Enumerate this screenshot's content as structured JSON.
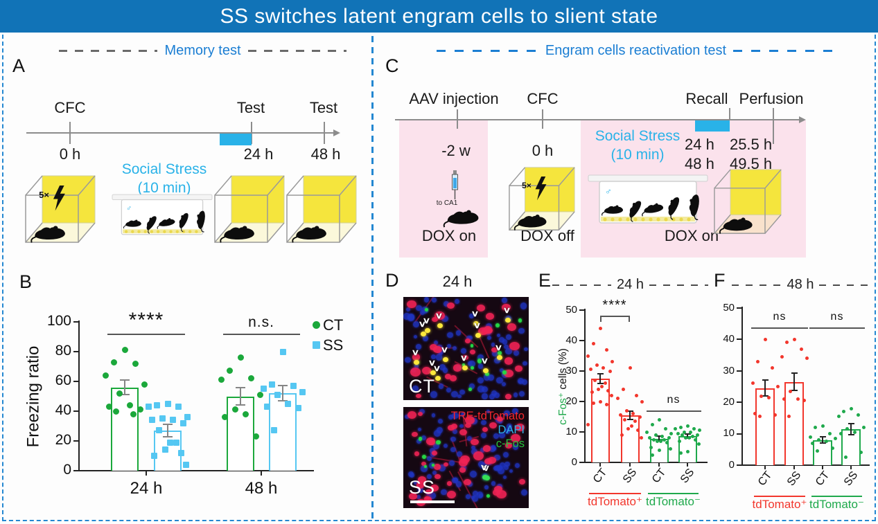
{
  "title": "SS switches latent engram cells to slient state",
  "headers": {
    "left": "Memory test",
    "right": "Engram cells reactivation test"
  },
  "panel_a": {
    "label": "A",
    "event_cfc": "CFC",
    "event_test1": "Test",
    "event_test2": "Test",
    "time_0": "0 h",
    "time_24": "24 h",
    "time_48": "48 h",
    "stress_line1": "Social Stress",
    "stress_line2": "(10 min)",
    "shock_label": "5×",
    "male_symbol": "♂"
  },
  "panel_b": {
    "label": "B"
  },
  "panel_c": {
    "label": "C",
    "event_aav": "AAV injection",
    "event_cfc": "CFC",
    "event_recall": "Recall",
    "event_perfusion": "Perfusion",
    "time_aav": "-2 w",
    "time_cfc": "0 h",
    "recall_time_24": "24 h",
    "perfusion_time_24": "25.5 h",
    "recall_time_48": "48 h",
    "perfusion_time_48": "49.5 h",
    "stress_line1": "Social Stress",
    "stress_line2": "(10 min)",
    "dox_1": "DOX on",
    "dox_2": "DOX off",
    "dox_3": "DOX on",
    "injection_target": "to CA1",
    "shock_label": "5×",
    "male_symbol": "♂"
  },
  "panel_d": {
    "label": "D",
    "time_header": "24 h",
    "image_top_label": "CT",
    "image_bottom_label": "SS",
    "stain_tdtomato": "TRE-tdTomato",
    "stain_dapi": "DAPI",
    "stain_cfos": "c-Fos",
    "arrowheads_ct": 13,
    "arrowheads_ss": 2
  },
  "panel_e": {
    "label": "E",
    "time_header": "24 h"
  },
  "panel_f": {
    "label": "F",
    "time_header": "48 h"
  },
  "chart_data": [
    {
      "panel": "B",
      "type": "bar",
      "subtype": "bar_with_scatter",
      "ylabel": "Freezing ratio",
      "ylim": [
        0,
        100
      ],
      "yticks": [
        0,
        20,
        40,
        60,
        80,
        100
      ],
      "group_labels": [
        "24 h",
        "48 h"
      ],
      "series": [
        {
          "name": "CT",
          "color": "#1ba83b",
          "marker": "circle"
        },
        {
          "name": "SS",
          "color": "#55c7f2",
          "marker": "square"
        }
      ],
      "bars": [
        {
          "group": "24 h",
          "series": "CT",
          "mean": 56,
          "sem": 5,
          "points": [
            81,
            73,
            72,
            64,
            58,
            52,
            44,
            43,
            41,
            40,
            38
          ]
        },
        {
          "group": "24 h",
          "series": "SS",
          "mean": 27,
          "sem": 4,
          "points": [
            45,
            44,
            43,
            43,
            36,
            35,
            34,
            34,
            32,
            27,
            19,
            19,
            14,
            12,
            10,
            4
          ]
        },
        {
          "group": "48 h",
          "series": "CT",
          "mean": 50,
          "sem": 6,
          "points": [
            76,
            67,
            62,
            61,
            51,
            41,
            38,
            36,
            23
          ]
        },
        {
          "group": "48 h",
          "series": "SS",
          "mean": 52,
          "sem": 5,
          "points": [
            80,
            58,
            57,
            55,
            53,
            51,
            45,
            43,
            42,
            27
          ]
        }
      ],
      "significance": [
        {
          "bars": [
            0,
            1
          ],
          "label": "****",
          "style": "line"
        },
        {
          "bars": [
            2,
            3
          ],
          "label": "n.s.",
          "style": "line"
        }
      ],
      "legend_position": "top-right",
      "grid": false
    },
    {
      "panel": "E",
      "type": "bar",
      "subtype": "bar_with_scatter",
      "title": "24 h",
      "ylabel": "c-Fos⁺ cells (%)",
      "ylabel_parts": [
        {
          "text": "c-Fos⁺",
          "color": "#1fa94c"
        },
        {
          "text": " cells (%)",
          "color": "#111111"
        }
      ],
      "ylim": [
        0,
        50
      ],
      "yticks": [
        0,
        10,
        20,
        30,
        40,
        50
      ],
      "categories": [
        "CT",
        "SS",
        "CT",
        "SS"
      ],
      "category_groups": [
        {
          "label": "tdTomato⁺",
          "color": "#f2362c",
          "bars": [
            0,
            1
          ]
        },
        {
          "label": "tdTomato⁻",
          "color": "#1fa94c",
          "bars": [
            2,
            3
          ]
        }
      ],
      "bars": [
        {
          "label": "CT",
          "color": "#f2362c",
          "mean": 27.5,
          "sem": 1.7,
          "points": [
            44,
            39,
            37,
            35,
            33,
            32,
            31,
            30.5,
            30,
            27,
            26,
            25,
            24,
            23.5,
            23,
            22,
            20,
            19.5,
            19,
            12.5
          ]
        },
        {
          "label": "SS",
          "color": "#f2362c",
          "mean": 15.5,
          "sem": 1.3,
          "points": [
            31,
            24,
            22,
            21,
            20,
            17,
            16,
            15.5,
            15,
            14,
            13.5,
            12,
            11,
            10.5,
            9,
            8
          ]
        },
        {
          "label": "CT",
          "color": "#1fa94c",
          "mean": 7.8,
          "sem": 0.8,
          "points": [
            14,
            12.5,
            11,
            10,
            9.5,
            9,
            8.5,
            8,
            8,
            7.5,
            7.5,
            7,
            7,
            6.5,
            5,
            4.5,
            4,
            2.5
          ]
        },
        {
          "label": "SS",
          "color": "#1fa94c",
          "mean": 8.6,
          "sem": 0.7,
          "points": [
            12,
            11.5,
            11,
            11,
            10.5,
            10,
            10,
            9.5,
            9,
            9,
            8.5,
            8,
            8,
            7.5,
            7,
            6,
            3.5,
            3
          ]
        }
      ],
      "significance": [
        {
          "bars": [
            0,
            1
          ],
          "label": "****",
          "style": "bracket"
        },
        {
          "bars": [
            2,
            3
          ],
          "label": "ns",
          "style": "line"
        }
      ]
    },
    {
      "panel": "F",
      "type": "bar",
      "subtype": "bar_with_scatter",
      "title": "48 h",
      "ylim": [
        0,
        50
      ],
      "yticks": [
        0,
        10,
        20,
        30,
        40,
        50
      ],
      "categories": [
        "CT",
        "SS",
        "CT",
        "SS"
      ],
      "category_groups": [
        {
          "label": "tdTomato⁺",
          "color": "#f2362c",
          "bars": [
            0,
            1
          ]
        },
        {
          "label": "tdTomato⁻",
          "color": "#1fa94c",
          "bars": [
            2,
            3
          ]
        }
      ],
      "bars": [
        {
          "label": "CT",
          "color": "#f2362c",
          "mean": 24.5,
          "sem": 2.5,
          "points": [
            40,
            33,
            31,
            26,
            25,
            22,
            21.5,
            16.5,
            16,
            15.5
          ]
        },
        {
          "label": "SS",
          "color": "#f2362c",
          "mean": 26.5,
          "sem": 2.8,
          "points": [
            40,
            39,
            37,
            34.5,
            34,
            23.5,
            21,
            21,
            20.5,
            15.5
          ]
        },
        {
          "label": "CT",
          "color": "#1fa94c",
          "mean": 8,
          "sem": 1,
          "points": [
            12.5,
            12,
            10,
            9,
            8.5,
            8,
            7.5,
            7,
            5.5,
            4.5
          ]
        },
        {
          "label": "SS",
          "color": "#1fa94c",
          "mean": 11.5,
          "sem": 1.8,
          "points": [
            18,
            17,
            16,
            15.5,
            12,
            11.5,
            10.5,
            10,
            4,
            2.5
          ]
        }
      ],
      "significance": [
        {
          "bars": [
            0,
            1
          ],
          "label": "ns",
          "style": "line"
        },
        {
          "bars": [
            2,
            3
          ],
          "label": "ns",
          "style": "line"
        }
      ]
    }
  ],
  "colors": {
    "title_bar_bg": "#1173b7",
    "title_text": "#ffffff",
    "header_blue": "#1b7ed3",
    "divider_blue": "#2387d1",
    "timeline_cyan": "#29b2e8",
    "context_yellow": "#f5e53d",
    "dox_pink": "#fbe2ec",
    "ct_green": "#1ba83b",
    "ss_cyan": "#55c7f2",
    "tdtomato_red": "#f2362c",
    "tdtomato_neg_green": "#1fa94c",
    "stain_dapi_blue": "#2db3ea",
    "stain_cfos_green": "#27c13d"
  }
}
